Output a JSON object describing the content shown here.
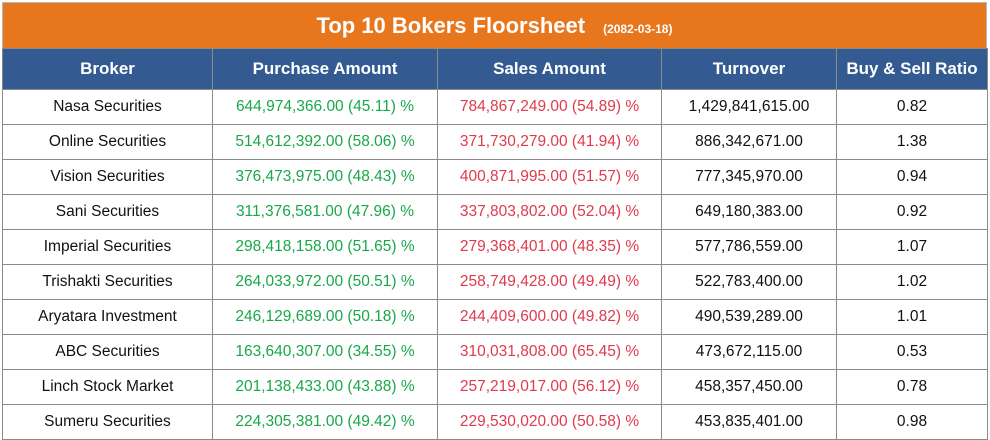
{
  "header": {
    "title": "Top 10 Bokers Floorsheet",
    "date": "(2082-03-18)"
  },
  "columns": [
    "Broker",
    "Purchase Amount",
    "Sales Amount",
    "Turnover",
    "Buy & Sell Ratio"
  ],
  "colors": {
    "title_bg": "#e8761c",
    "header_bg": "#335b92",
    "purchase": "#18a84a",
    "sales": "#e03a4c"
  },
  "rows": [
    {
      "broker": "Nasa Securities",
      "purchase": "644,974,366.00 (45.11) %",
      "sales": "784,867,249.00 (54.89) %",
      "turnover": "1,429,841,615.00",
      "ratio": "0.82"
    },
    {
      "broker": "Online Securities",
      "purchase": "514,612,392.00 (58.06) %",
      "sales": "371,730,279.00 (41.94) %",
      "turnover": "886,342,671.00",
      "ratio": "1.38"
    },
    {
      "broker": "Vision Securities",
      "purchase": "376,473,975.00 (48.43) %",
      "sales": "400,871,995.00 (51.57) %",
      "turnover": "777,345,970.00",
      "ratio": "0.94"
    },
    {
      "broker": "Sani Securities",
      "purchase": "311,376,581.00 (47.96) %",
      "sales": "337,803,802.00 (52.04) %",
      "turnover": "649,180,383.00",
      "ratio": "0.92"
    },
    {
      "broker": "Imperial Securities",
      "purchase": "298,418,158.00 (51.65) %",
      "sales": "279,368,401.00 (48.35) %",
      "turnover": "577,786,559.00",
      "ratio": "1.07"
    },
    {
      "broker": "Trishakti Securities",
      "purchase": "264,033,972.00 (50.51) %",
      "sales": "258,749,428.00 (49.49) %",
      "turnover": "522,783,400.00",
      "ratio": "1.02"
    },
    {
      "broker": "Aryatara Investment",
      "purchase": "246,129,689.00 (50.18) %",
      "sales": "244,409,600.00 (49.82) %",
      "turnover": "490,539,289.00",
      "ratio": "1.01"
    },
    {
      "broker": "ABC Securities",
      "purchase": "163,640,307.00 (34.55) %",
      "sales": "310,031,808.00 (65.45) %",
      "turnover": "473,672,115.00",
      "ratio": "0.53"
    },
    {
      "broker": "Linch Stock Market",
      "purchase": "201,138,433.00 (43.88) %",
      "sales": "257,219,017.00 (56.12) %",
      "turnover": "458,357,450.00",
      "ratio": "0.78"
    },
    {
      "broker": "Sumeru Securities",
      "purchase": "224,305,381.00 (49.42) %",
      "sales": "229,530,020.00 (50.58) %",
      "turnover": "453,835,401.00",
      "ratio": "0.98"
    }
  ]
}
